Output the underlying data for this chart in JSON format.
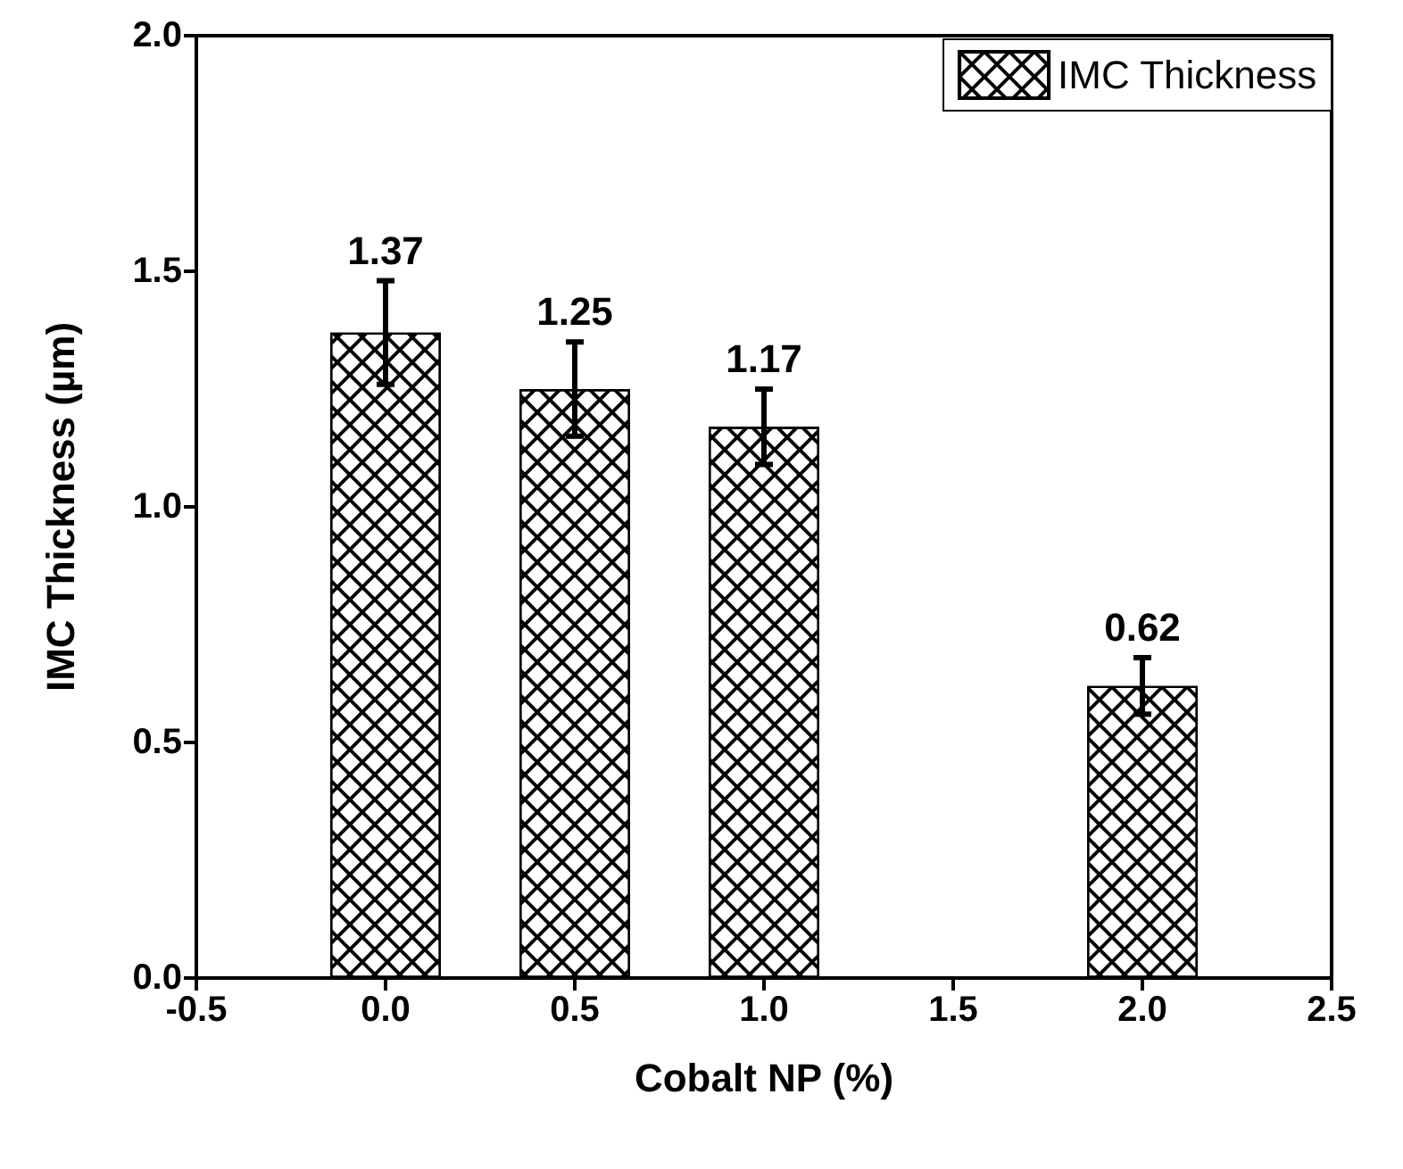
{
  "chart_data": {
    "type": "bar",
    "xlabel": "Cobalt NP (%)",
    "ylabel": "IMC Thickness (µm)",
    "x": [
      0,
      0.5,
      1,
      2
    ],
    "series": [
      {
        "name": "IMC Thickness",
        "color": "#ffffff",
        "values": [
          1.37,
          1.25,
          1.17,
          0.62
        ],
        "errors": [
          0.11,
          0.1,
          0.08,
          0.06
        ]
      }
    ],
    "xlim": [
      -0.5,
      2.5
    ],
    "xticks": [
      {
        "value": -0.5,
        "label": "-0.5"
      },
      {
        "value": 0,
        "label": "0.0"
      },
      {
        "value": 0.5,
        "label": "0.5"
      },
      {
        "value": 1,
        "label": "1.0"
      },
      {
        "value": 1.5,
        "label": "1.5"
      },
      {
        "value": 2,
        "label": "2.0"
      },
      {
        "value": 2.5,
        "label": "2.5"
      }
    ],
    "ylim": [
      0,
      2
    ],
    "yticks": [
      {
        "value": 0,
        "label": "0.0"
      },
      {
        "value": 0.5,
        "label": "0.5"
      },
      {
        "value": 1,
        "label": "1.0"
      },
      {
        "value": 1.5,
        "label": "1.5"
      },
      {
        "value": 2,
        "label": "2.0"
      }
    ],
    "data_labels": true,
    "grid": false,
    "legend": "top right"
  }
}
